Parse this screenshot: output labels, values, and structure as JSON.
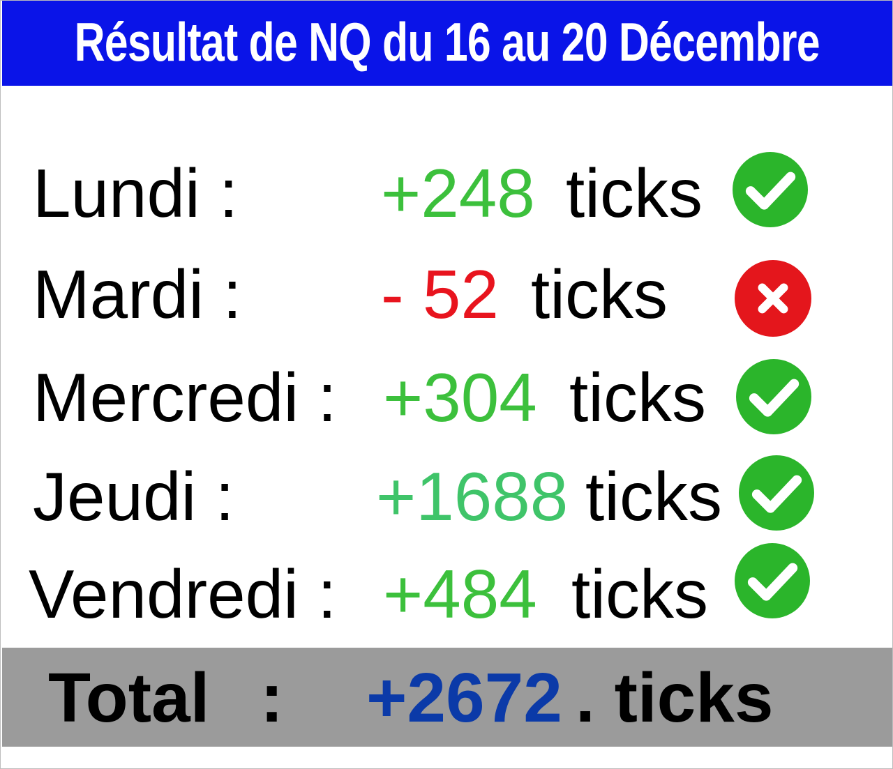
{
  "title": "Résultat de NQ du 16 au 20 Décembre",
  "colors": {
    "title_bg": "#0a14e8",
    "positive": "#3cc03c",
    "negative": "#e8141e",
    "total_value": "#0b3aa8",
    "total_bg": "#9b9b9b",
    "check_badge": "#2bb52b",
    "cross_badge": "#e4161c"
  },
  "rows": [
    {
      "day": "Lundi :",
      "value": "+248",
      "unit": "ticks",
      "status": "check-icon"
    },
    {
      "day": "Mardi :",
      "value": "- 52",
      "unit": "ticks",
      "status": "cross-icon"
    },
    {
      "day": "Mercredi :",
      "value": "+304",
      "unit": "ticks",
      "status": "check-icon"
    },
    {
      "day": "Jeudi :",
      "value": "+1688",
      "unit": "ticks",
      "status": "check-icon"
    },
    {
      "day": "Vendredi :",
      "value": "+484",
      "unit": "ticks",
      "status": "check-icon"
    }
  ],
  "total": {
    "label": "Total",
    "colon": ":",
    "value": "+2672",
    "unit": ". ticks"
  }
}
